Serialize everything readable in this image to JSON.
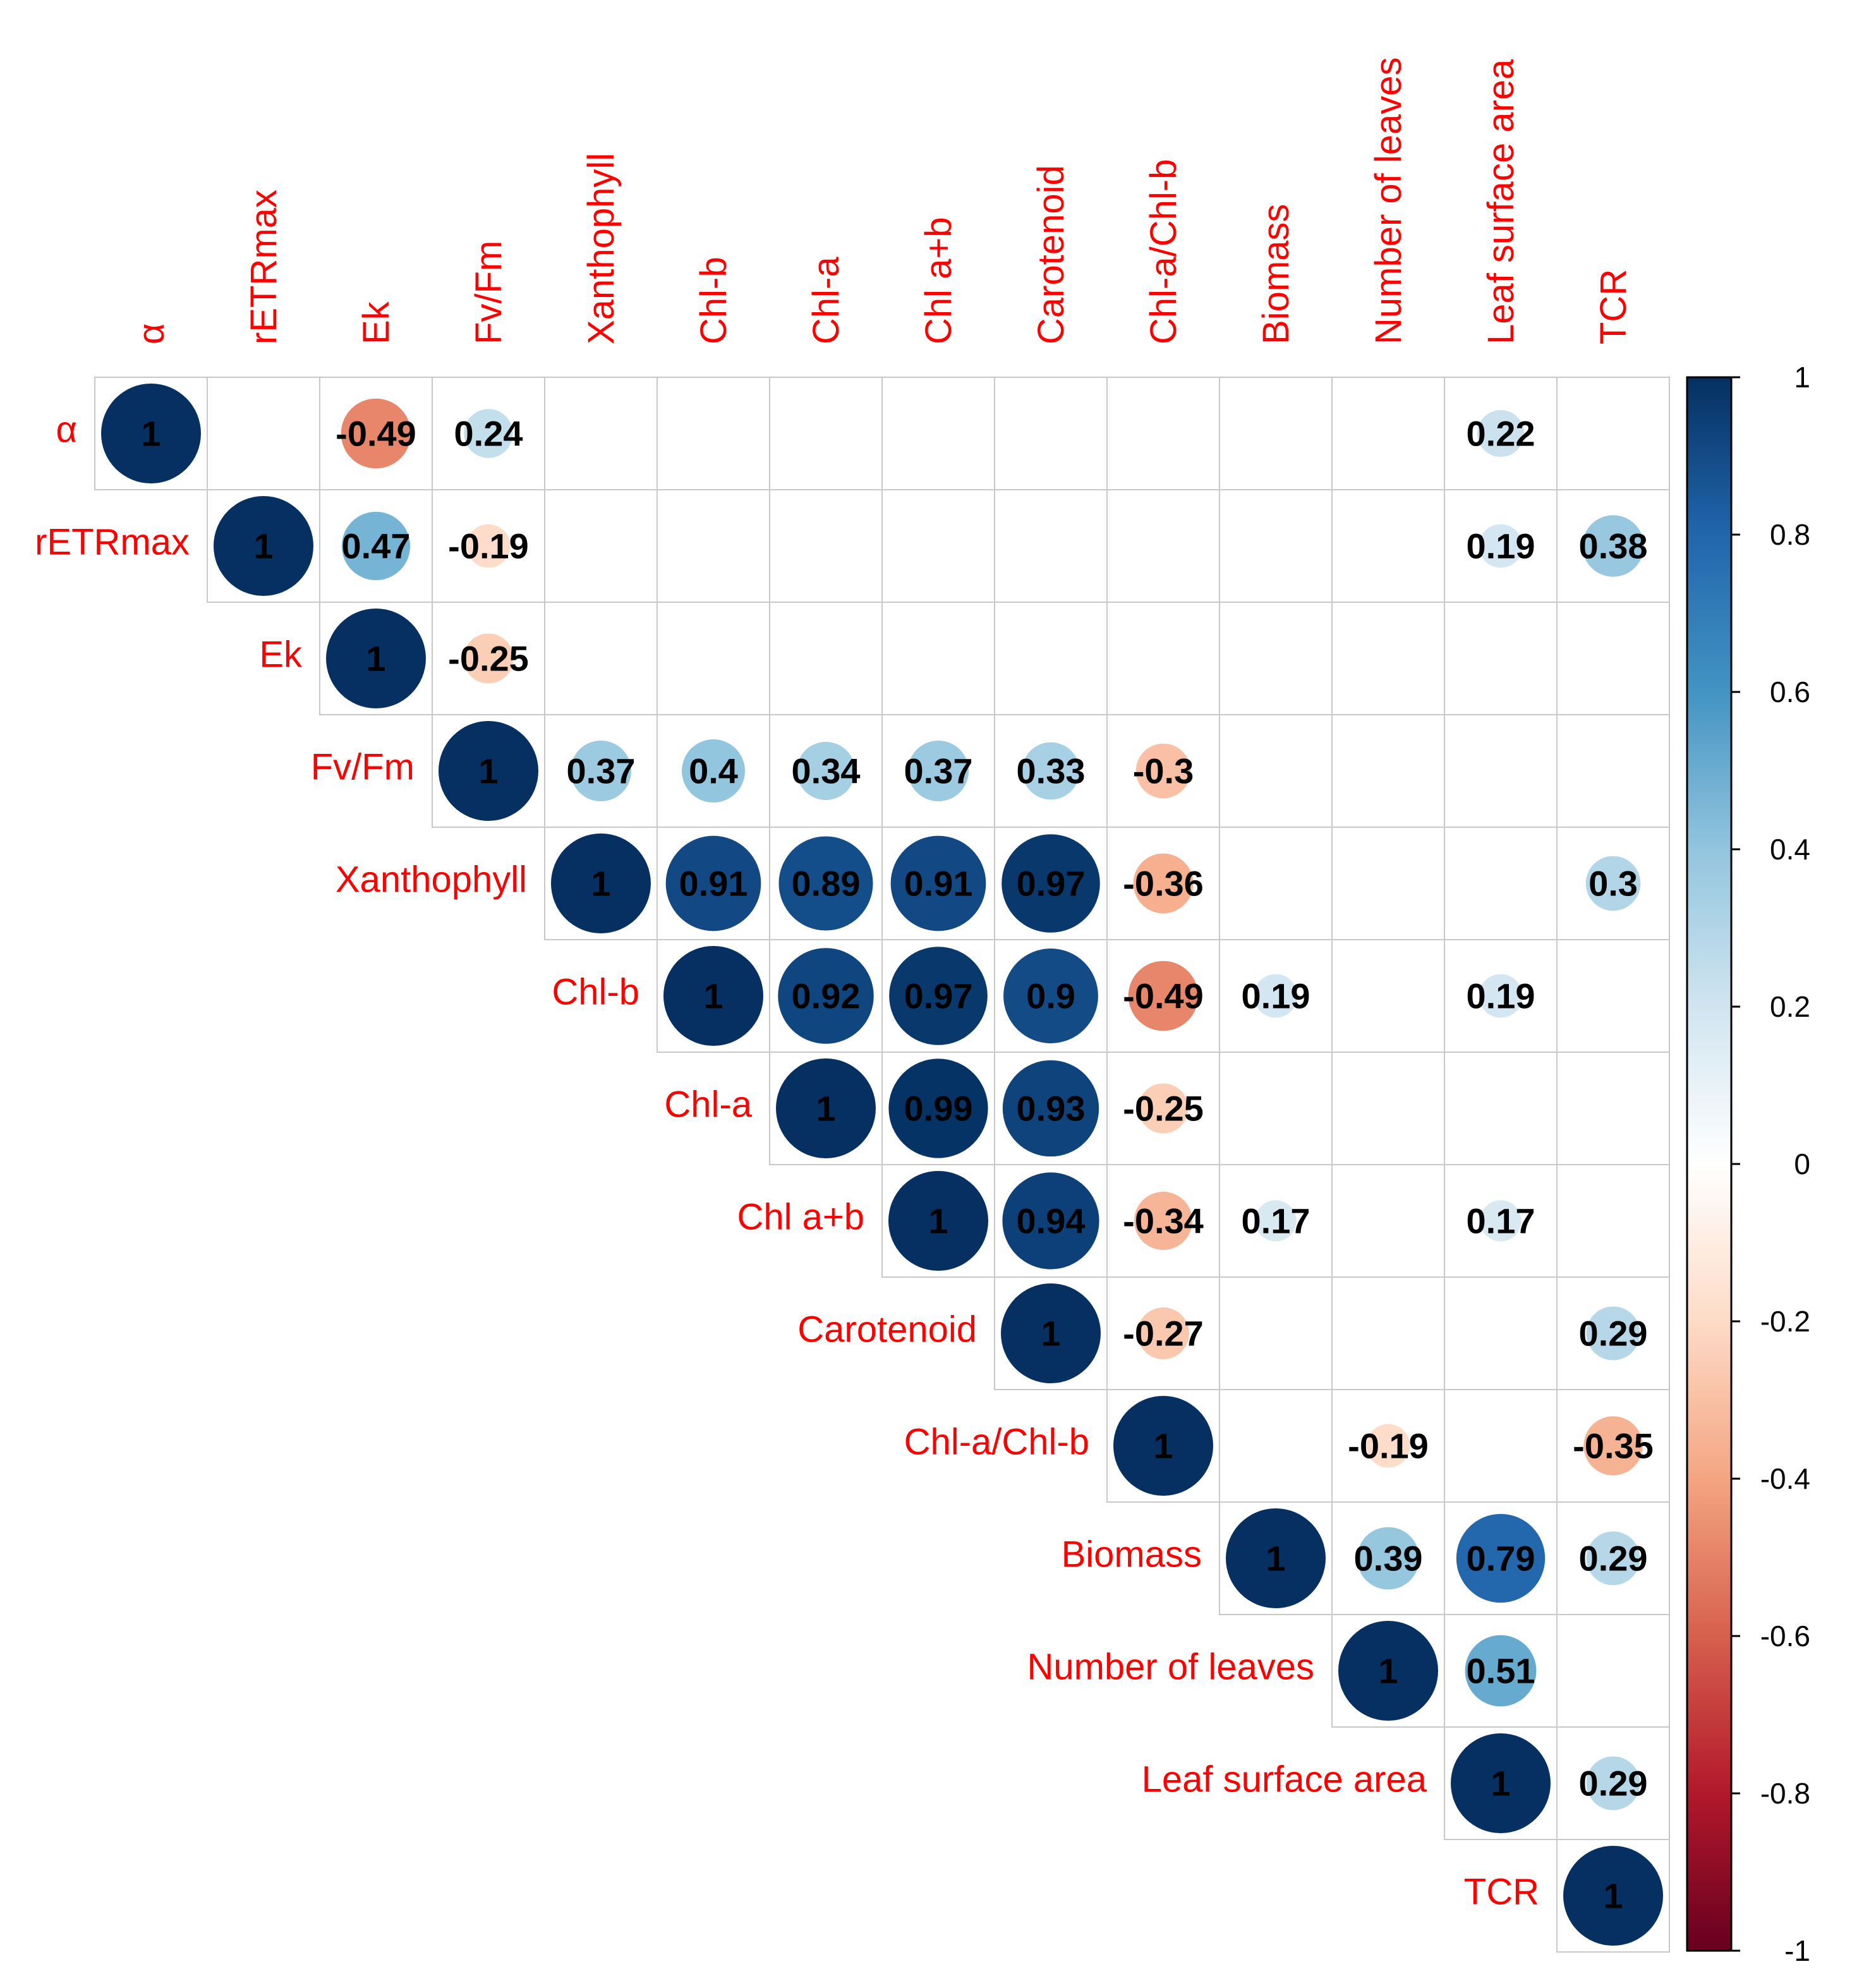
{
  "chart_data": {
    "type": "heatmap",
    "style": "corrplot-upper-circle",
    "variables": [
      "α",
      "rETRmax",
      "Ek",
      "Fv/Fm",
      "Xanthophyll",
      "Chl-b",
      "Chl-a",
      "Chl a+b",
      "Carotenoid",
      "Chl-a/Chl-b",
      "Biomass",
      "Number of leaves",
      "Leaf surface area",
      "TCR"
    ],
    "cells": [
      {
        "row": 0,
        "col": 0,
        "value": 1,
        "label": "1"
      },
      {
        "row": 0,
        "col": 2,
        "value": -0.49,
        "label": "-0.49"
      },
      {
        "row": 0,
        "col": 3,
        "value": 0.24,
        "label": "0.24"
      },
      {
        "row": 0,
        "col": 12,
        "value": 0.22,
        "label": "0.22"
      },
      {
        "row": 1,
        "col": 1,
        "value": 1,
        "label": "1"
      },
      {
        "row": 1,
        "col": 2,
        "value": 0.47,
        "label": "0.47"
      },
      {
        "row": 1,
        "col": 3,
        "value": -0.19,
        "label": "-0.19"
      },
      {
        "row": 1,
        "col": 12,
        "value": 0.19,
        "label": "0.19"
      },
      {
        "row": 1,
        "col": 13,
        "value": 0.38,
        "label": "0.38"
      },
      {
        "row": 2,
        "col": 2,
        "value": 1,
        "label": "1"
      },
      {
        "row": 2,
        "col": 3,
        "value": -0.25,
        "label": "-0.25"
      },
      {
        "row": 3,
        "col": 3,
        "value": 1,
        "label": "1"
      },
      {
        "row": 3,
        "col": 4,
        "value": 0.37,
        "label": "0.37"
      },
      {
        "row": 3,
        "col": 5,
        "value": 0.4,
        "label": "0.4"
      },
      {
        "row": 3,
        "col": 6,
        "value": 0.34,
        "label": "0.34"
      },
      {
        "row": 3,
        "col": 7,
        "value": 0.37,
        "label": "0.37"
      },
      {
        "row": 3,
        "col": 8,
        "value": 0.33,
        "label": "0.33"
      },
      {
        "row": 3,
        "col": 9,
        "value": -0.3,
        "label": "-0.3"
      },
      {
        "row": 4,
        "col": 4,
        "value": 1,
        "label": "1"
      },
      {
        "row": 4,
        "col": 5,
        "value": 0.91,
        "label": "0.91"
      },
      {
        "row": 4,
        "col": 6,
        "value": 0.89,
        "label": "0.89"
      },
      {
        "row": 4,
        "col": 7,
        "value": 0.91,
        "label": "0.91"
      },
      {
        "row": 4,
        "col": 8,
        "value": 0.97,
        "label": "0.97"
      },
      {
        "row": 4,
        "col": 9,
        "value": -0.36,
        "label": "-0.36"
      },
      {
        "row": 4,
        "col": 13,
        "value": 0.3,
        "label": "0.3"
      },
      {
        "row": 5,
        "col": 5,
        "value": 1,
        "label": "1"
      },
      {
        "row": 5,
        "col": 6,
        "value": 0.92,
        "label": "0.92"
      },
      {
        "row": 5,
        "col": 7,
        "value": 0.97,
        "label": "0.97"
      },
      {
        "row": 5,
        "col": 8,
        "value": 0.9,
        "label": "0.9"
      },
      {
        "row": 5,
        "col": 9,
        "value": -0.49,
        "label": "-0.49"
      },
      {
        "row": 5,
        "col": 10,
        "value": 0.19,
        "label": "0.19"
      },
      {
        "row": 5,
        "col": 12,
        "value": 0.19,
        "label": "0.19"
      },
      {
        "row": 6,
        "col": 6,
        "value": 1,
        "label": "1"
      },
      {
        "row": 6,
        "col": 7,
        "value": 0.99,
        "label": "0.99"
      },
      {
        "row": 6,
        "col": 8,
        "value": 0.93,
        "label": "0.93"
      },
      {
        "row": 6,
        "col": 9,
        "value": -0.25,
        "label": "-0.25"
      },
      {
        "row": 7,
        "col": 7,
        "value": 1,
        "label": "1"
      },
      {
        "row": 7,
        "col": 8,
        "value": 0.94,
        "label": "0.94"
      },
      {
        "row": 7,
        "col": 9,
        "value": -0.34,
        "label": "-0.34"
      },
      {
        "row": 7,
        "col": 10,
        "value": 0.17,
        "label": "0.17"
      },
      {
        "row": 7,
        "col": 12,
        "value": 0.17,
        "label": "0.17"
      },
      {
        "row": 8,
        "col": 8,
        "value": 1,
        "label": "1"
      },
      {
        "row": 8,
        "col": 9,
        "value": -0.27,
        "label": "-0.27"
      },
      {
        "row": 8,
        "col": 13,
        "value": 0.29,
        "label": "0.29"
      },
      {
        "row": 9,
        "col": 9,
        "value": 1,
        "label": "1"
      },
      {
        "row": 9,
        "col": 11,
        "value": -0.19,
        "label": "-0.19"
      },
      {
        "row": 9,
        "col": 13,
        "value": -0.35,
        "label": "-0.35"
      },
      {
        "row": 10,
        "col": 10,
        "value": 1,
        "label": "1"
      },
      {
        "row": 10,
        "col": 11,
        "value": 0.39,
        "label": "0.39"
      },
      {
        "row": 10,
        "col": 12,
        "value": 0.79,
        "label": "0.79"
      },
      {
        "row": 10,
        "col": 13,
        "value": 0.29,
        "label": "0.29"
      },
      {
        "row": 11,
        "col": 11,
        "value": 1,
        "label": "1"
      },
      {
        "row": 11,
        "col": 12,
        "value": 0.51,
        "label": "0.51"
      },
      {
        "row": 12,
        "col": 12,
        "value": 1,
        "label": "1"
      },
      {
        "row": 12,
        "col": 13,
        "value": 0.29,
        "label": "0.29"
      },
      {
        "row": 13,
        "col": 13,
        "value": 1,
        "label": "1"
      }
    ],
    "colorbar": {
      "range": [
        -1,
        1
      ],
      "ticks": [
        1,
        0.8,
        0.6,
        0.4,
        0.2,
        0,
        -0.2,
        -0.4,
        -0.6,
        -0.8,
        -1
      ],
      "tick_labels": [
        "1",
        "0.8",
        "0.6",
        "0.4",
        "0.2",
        "0",
        "-0.2",
        "-0.4",
        "-0.6",
        "-0.8",
        "-1"
      ],
      "placement": "right"
    },
    "colors": {
      "label": "#FF0000",
      "grid": "#C8C8C8",
      "text": "#000000",
      "scale": [
        "#67001F",
        "#B2182B",
        "#D6604D",
        "#F4A582",
        "#FDDBC7",
        "#FFFFFF",
        "#D1E5F0",
        "#92C5DE",
        "#4393C3",
        "#2166AC",
        "#053061"
      ]
    }
  }
}
